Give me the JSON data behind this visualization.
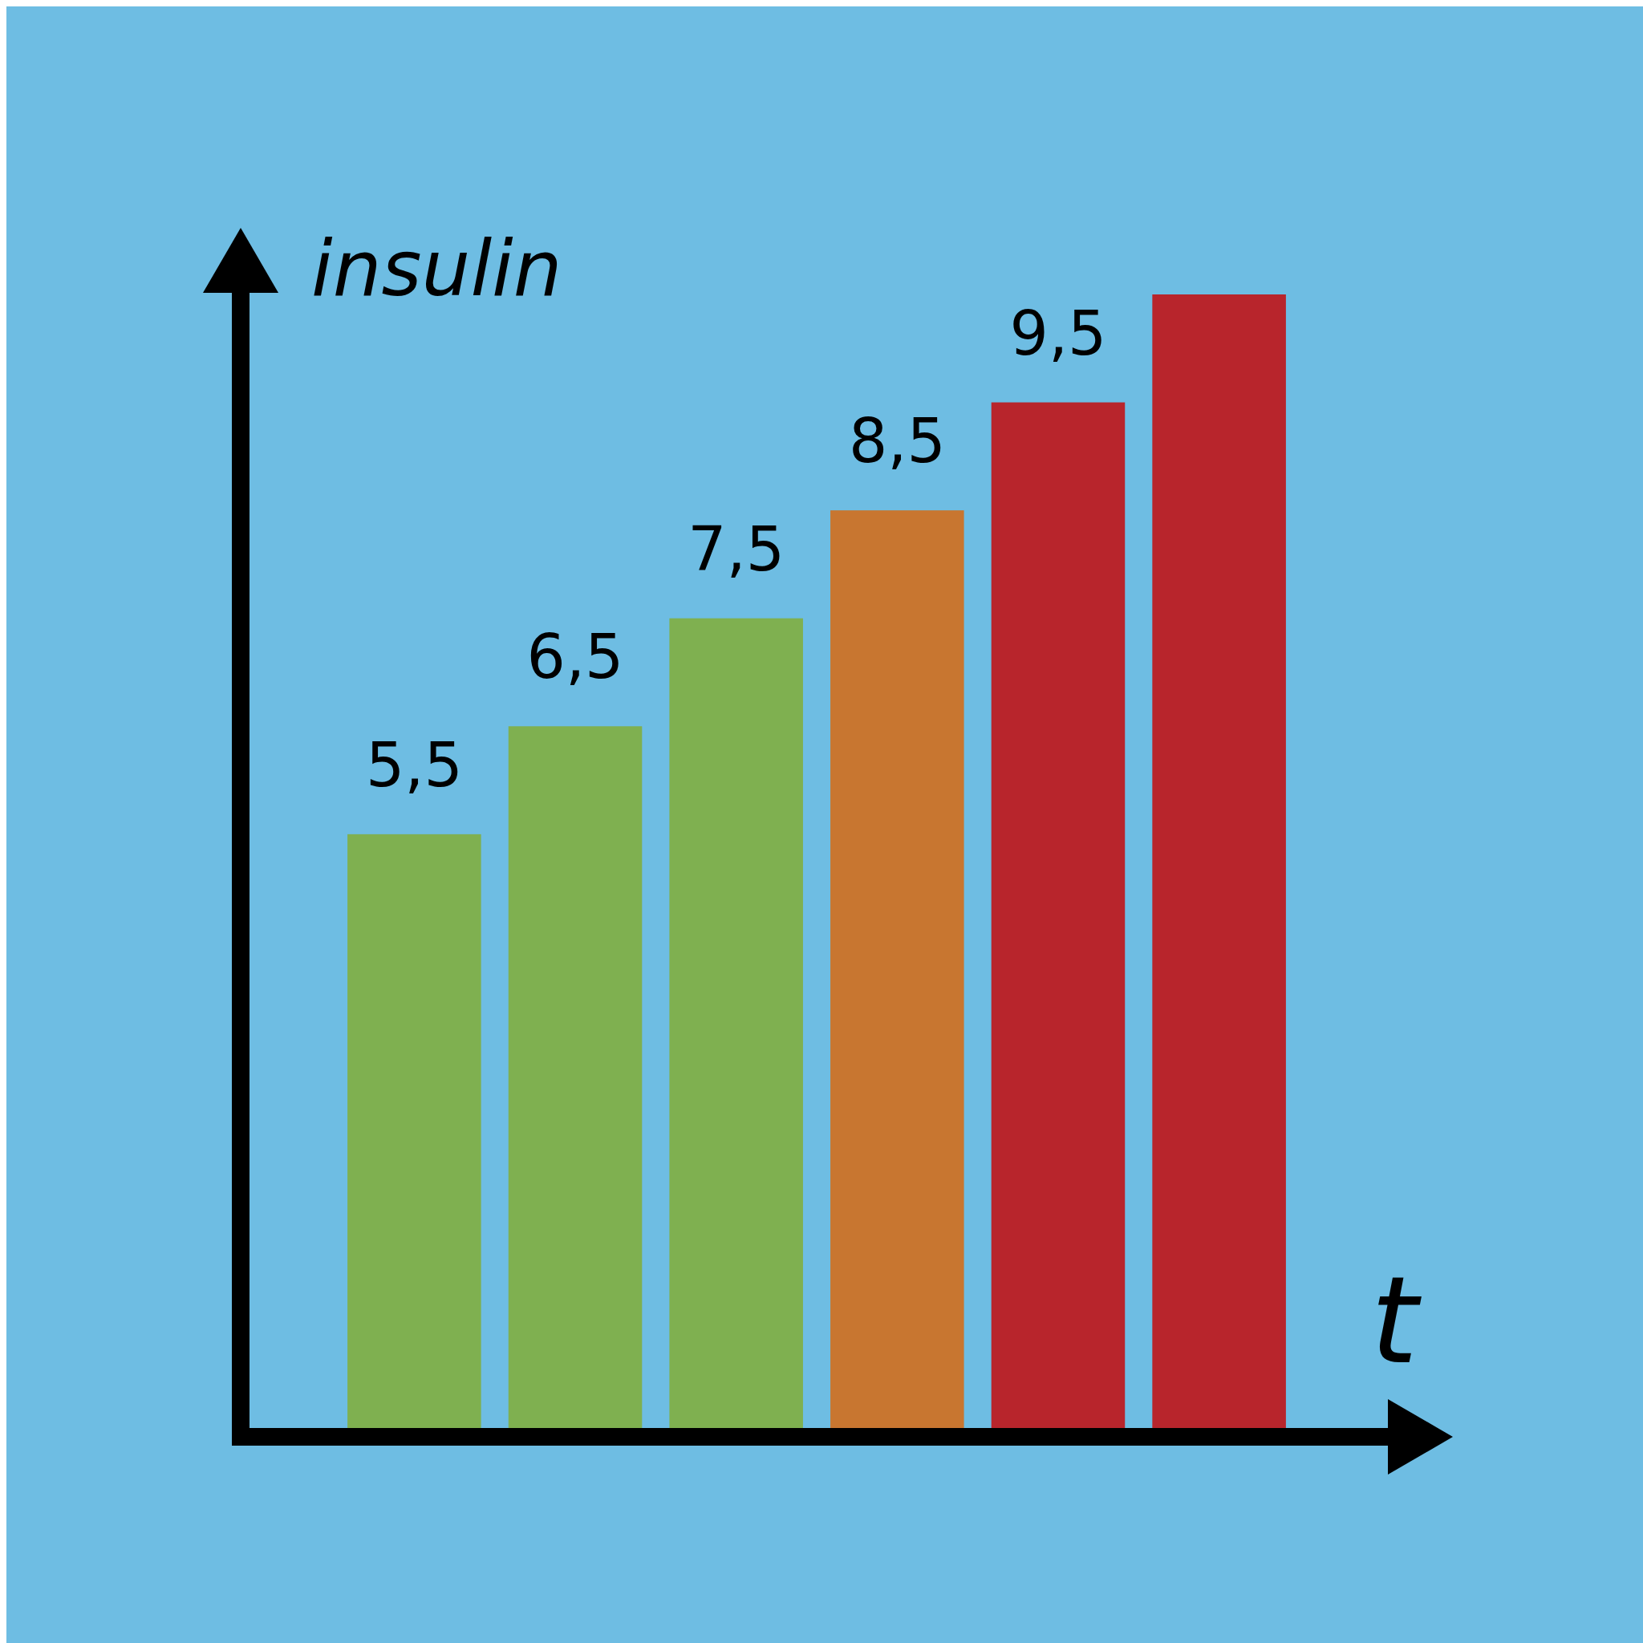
{
  "chart_data": {
    "type": "bar",
    "xlabel": "t",
    "ylabel": "insulin",
    "categories": [
      null,
      null,
      null,
      null,
      null,
      null
    ],
    "values": [
      5.5,
      6.5,
      7.5,
      8.5,
      9.5,
      10.5
    ],
    "value_labels": [
      "5,5",
      "6,5",
      "7,5",
      "8,5",
      "9,5",
      null
    ],
    "colors": [
      "#7fb050",
      "#7fb050",
      "#7fb050",
      "#c87630",
      "#b8252c",
      "#b8252c"
    ]
  }
}
